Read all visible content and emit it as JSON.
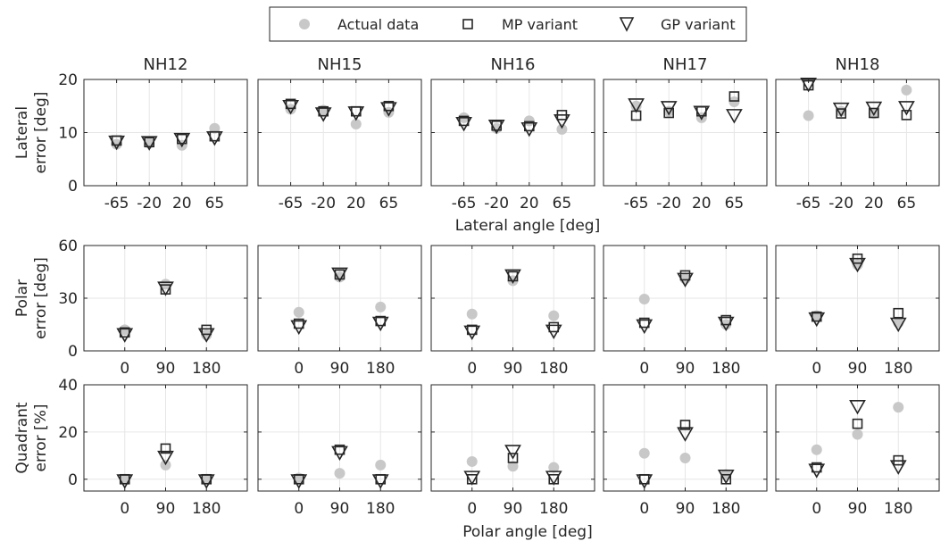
{
  "legend": {
    "actual_label": "Actual data",
    "mp_label": "MP variant",
    "gp_label": "GP variant"
  },
  "colors": {
    "actual": "#c8c8c8",
    "marker_edge": "#262626",
    "grid": "#e6e6e6",
    "axis": "#262626"
  },
  "chart_data": {
    "type": "scatter",
    "subjects": [
      "NH12",
      "NH15",
      "NH16",
      "NH17",
      "NH18"
    ],
    "rows": [
      {
        "key": "lateral",
        "ylabel_lines": [
          "Lateral",
          "error [deg]"
        ],
        "ylim": [
          0,
          20
        ],
        "yticks": [
          0,
          10,
          20
        ],
        "xlim": [
          -1,
          4
        ],
        "categories": [
          0,
          1,
          2,
          3
        ],
        "xtick_labels": [
          "-65",
          "-20",
          "20",
          "65"
        ],
        "xlabel": "Lateral angle [deg]",
        "series": {
          "actual": [
            [
              7.8,
              8.0,
              7.6,
              10.8
            ],
            [
              14.4,
              14.2,
              11.6,
              13.8
            ],
            [
              12.8,
              10.8,
              12.2,
              10.6
            ],
            [
              15.0,
              14.0,
              12.8,
              15.8
            ],
            [
              13.2,
              14.0,
              13.6,
              18.0
            ]
          ],
          "mp": [
            [
              8.5,
              8.2,
              8.8,
              9.3
            ],
            [
              15.4,
              14.0,
              14.0,
              15.0
            ],
            [
              12.2,
              11.3,
              11.2,
              13.3
            ],
            [
              13.2,
              13.7,
              14.0,
              16.8
            ],
            [
              18.9,
              13.6,
              13.7,
              13.3
            ]
          ],
          "gp": [
            [
              8.3,
              8.2,
              8.8,
              9.1
            ],
            [
              15.0,
              13.6,
              13.8,
              14.6
            ],
            [
              11.8,
              11.3,
              10.8,
              12.3
            ],
            [
              15.3,
              14.8,
              13.9,
              13.3
            ],
            [
              19.2,
              14.5,
              14.7,
              14.8
            ]
          ]
        }
      },
      {
        "key": "polar",
        "ylabel_lines": [
          "Polar",
          "error [deg]"
        ],
        "ylim": [
          0,
          60
        ],
        "yticks": [
          0,
          30,
          60
        ],
        "xlim": [
          -1,
          3
        ],
        "categories": [
          0,
          1,
          2
        ],
        "xtick_labels": [
          "0",
          "90",
          "180"
        ],
        "xlabel": "",
        "series": {
          "actual": [
            [
              12.0,
              38.0,
              9.0
            ],
            [
              22.0,
              42.0,
              25.0
            ],
            [
              21.0,
              40.0,
              20.0
            ],
            [
              29.5,
              41.0,
              15.0
            ],
            [
              20.0,
              49.0,
              16.0
            ]
          ],
          "mp": [
            [
              10.5,
              35.0,
              12.0
            ],
            [
              15.5,
              43.5,
              17.0
            ],
            [
              12.0,
              42.5,
              13.5
            ],
            [
              16.0,
              43.0,
              17.5
            ],
            [
              19.5,
              52.5,
              21.5
            ]
          ],
          "gp": [
            [
              9.5,
              36.0,
              9.5
            ],
            [
              14.0,
              44.0,
              16.0
            ],
            [
              11.0,
              43.0,
              11.5
            ],
            [
              14.5,
              41.0,
              16.0
            ],
            [
              18.5,
              49.5,
              15.5
            ]
          ]
        }
      },
      {
        "key": "quadrant",
        "ylabel_lines": [
          "Quadrant",
          "error [%]"
        ],
        "ylim": [
          -5,
          40
        ],
        "yticks": [
          0,
          20,
          40
        ],
        "xlim": [
          -1,
          3
        ],
        "categories": [
          0,
          1,
          2
        ],
        "xtick_labels": [
          "0",
          "90",
          "180"
        ],
        "xlabel": "Polar angle [deg]",
        "series": {
          "actual": [
            [
              0.0,
              6.0,
              0.0
            ],
            [
              0.5,
              2.5,
              6.0
            ],
            [
              7.5,
              5.5,
              5.0
            ],
            [
              11.0,
              9.0,
              2.0
            ],
            [
              12.5,
              19.0,
              30.5
            ]
          ],
          "mp": [
            [
              0.0,
              13.0,
              0.0
            ],
            [
              0.0,
              12.5,
              0.0
            ],
            [
              0.0,
              9.0,
              0.0
            ],
            [
              0.0,
              23.0,
              0.0
            ],
            [
              5.0,
              23.5,
              8.0
            ]
          ],
          "gp": [
            [
              -0.5,
              9.5,
              -0.5
            ],
            [
              -0.5,
              11.5,
              -0.5
            ],
            [
              1.0,
              12.0,
              1.0
            ],
            [
              -0.5,
              19.5,
              1.5
            ],
            [
              4.0,
              31.0,
              5.5
            ]
          ]
        }
      }
    ]
  }
}
